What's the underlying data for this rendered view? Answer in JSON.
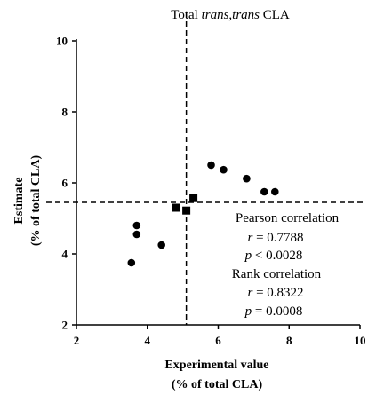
{
  "chart_data": {
    "type": "scatter",
    "title": {
      "prefix": "Total ",
      "italic": "trans,trans",
      "suffix": " CLA"
    },
    "xlabel": {
      "line1": "Experimental value",
      "line2": "(% of total CLA)"
    },
    "ylabel": {
      "line1": "Estimate",
      "line2": "(% of total CLA)"
    },
    "xlim": [
      2,
      10
    ],
    "ylim": [
      2,
      10
    ],
    "xticks": [
      "2",
      "4",
      "6",
      "8",
      "10"
    ],
    "yticks": [
      "2",
      "4",
      "6",
      "8",
      "10"
    ],
    "grid": false,
    "reference_lines": {
      "vertical_x": 5.1,
      "horizontal_y": 5.45,
      "style": "dashed"
    },
    "series": [
      {
        "marker": "circle",
        "points": [
          {
            "x": 3.55,
            "y": 3.75
          },
          {
            "x": 3.7,
            "y": 4.8
          },
          {
            "x": 3.7,
            "y": 4.55
          },
          {
            "x": 4.4,
            "y": 4.25
          },
          {
            "x": 5.8,
            "y": 6.5
          },
          {
            "x": 6.15,
            "y": 6.37
          },
          {
            "x": 6.8,
            "y": 6.12
          },
          {
            "x": 7.3,
            "y": 5.75
          },
          {
            "x": 7.6,
            "y": 5.75
          }
        ]
      },
      {
        "marker": "square",
        "points": [
          {
            "x": 4.8,
            "y": 5.3
          },
          {
            "x": 5.1,
            "y": 5.22
          },
          {
            "x": 5.3,
            "y": 5.57
          }
        ]
      }
    ],
    "annotations": {
      "pearson_label": "Pearson correlation",
      "pearson_r_sym": "r",
      "pearson_r_val": " = 0.7788",
      "pearson_p_sym": "p",
      "pearson_p_val": " < 0.0028",
      "rank_label": "Rank correlation",
      "rank_r_sym": "r",
      "rank_r_val": " = 0.8322",
      "rank_p_sym": "p",
      "rank_p_val": " = 0.0008"
    }
  }
}
